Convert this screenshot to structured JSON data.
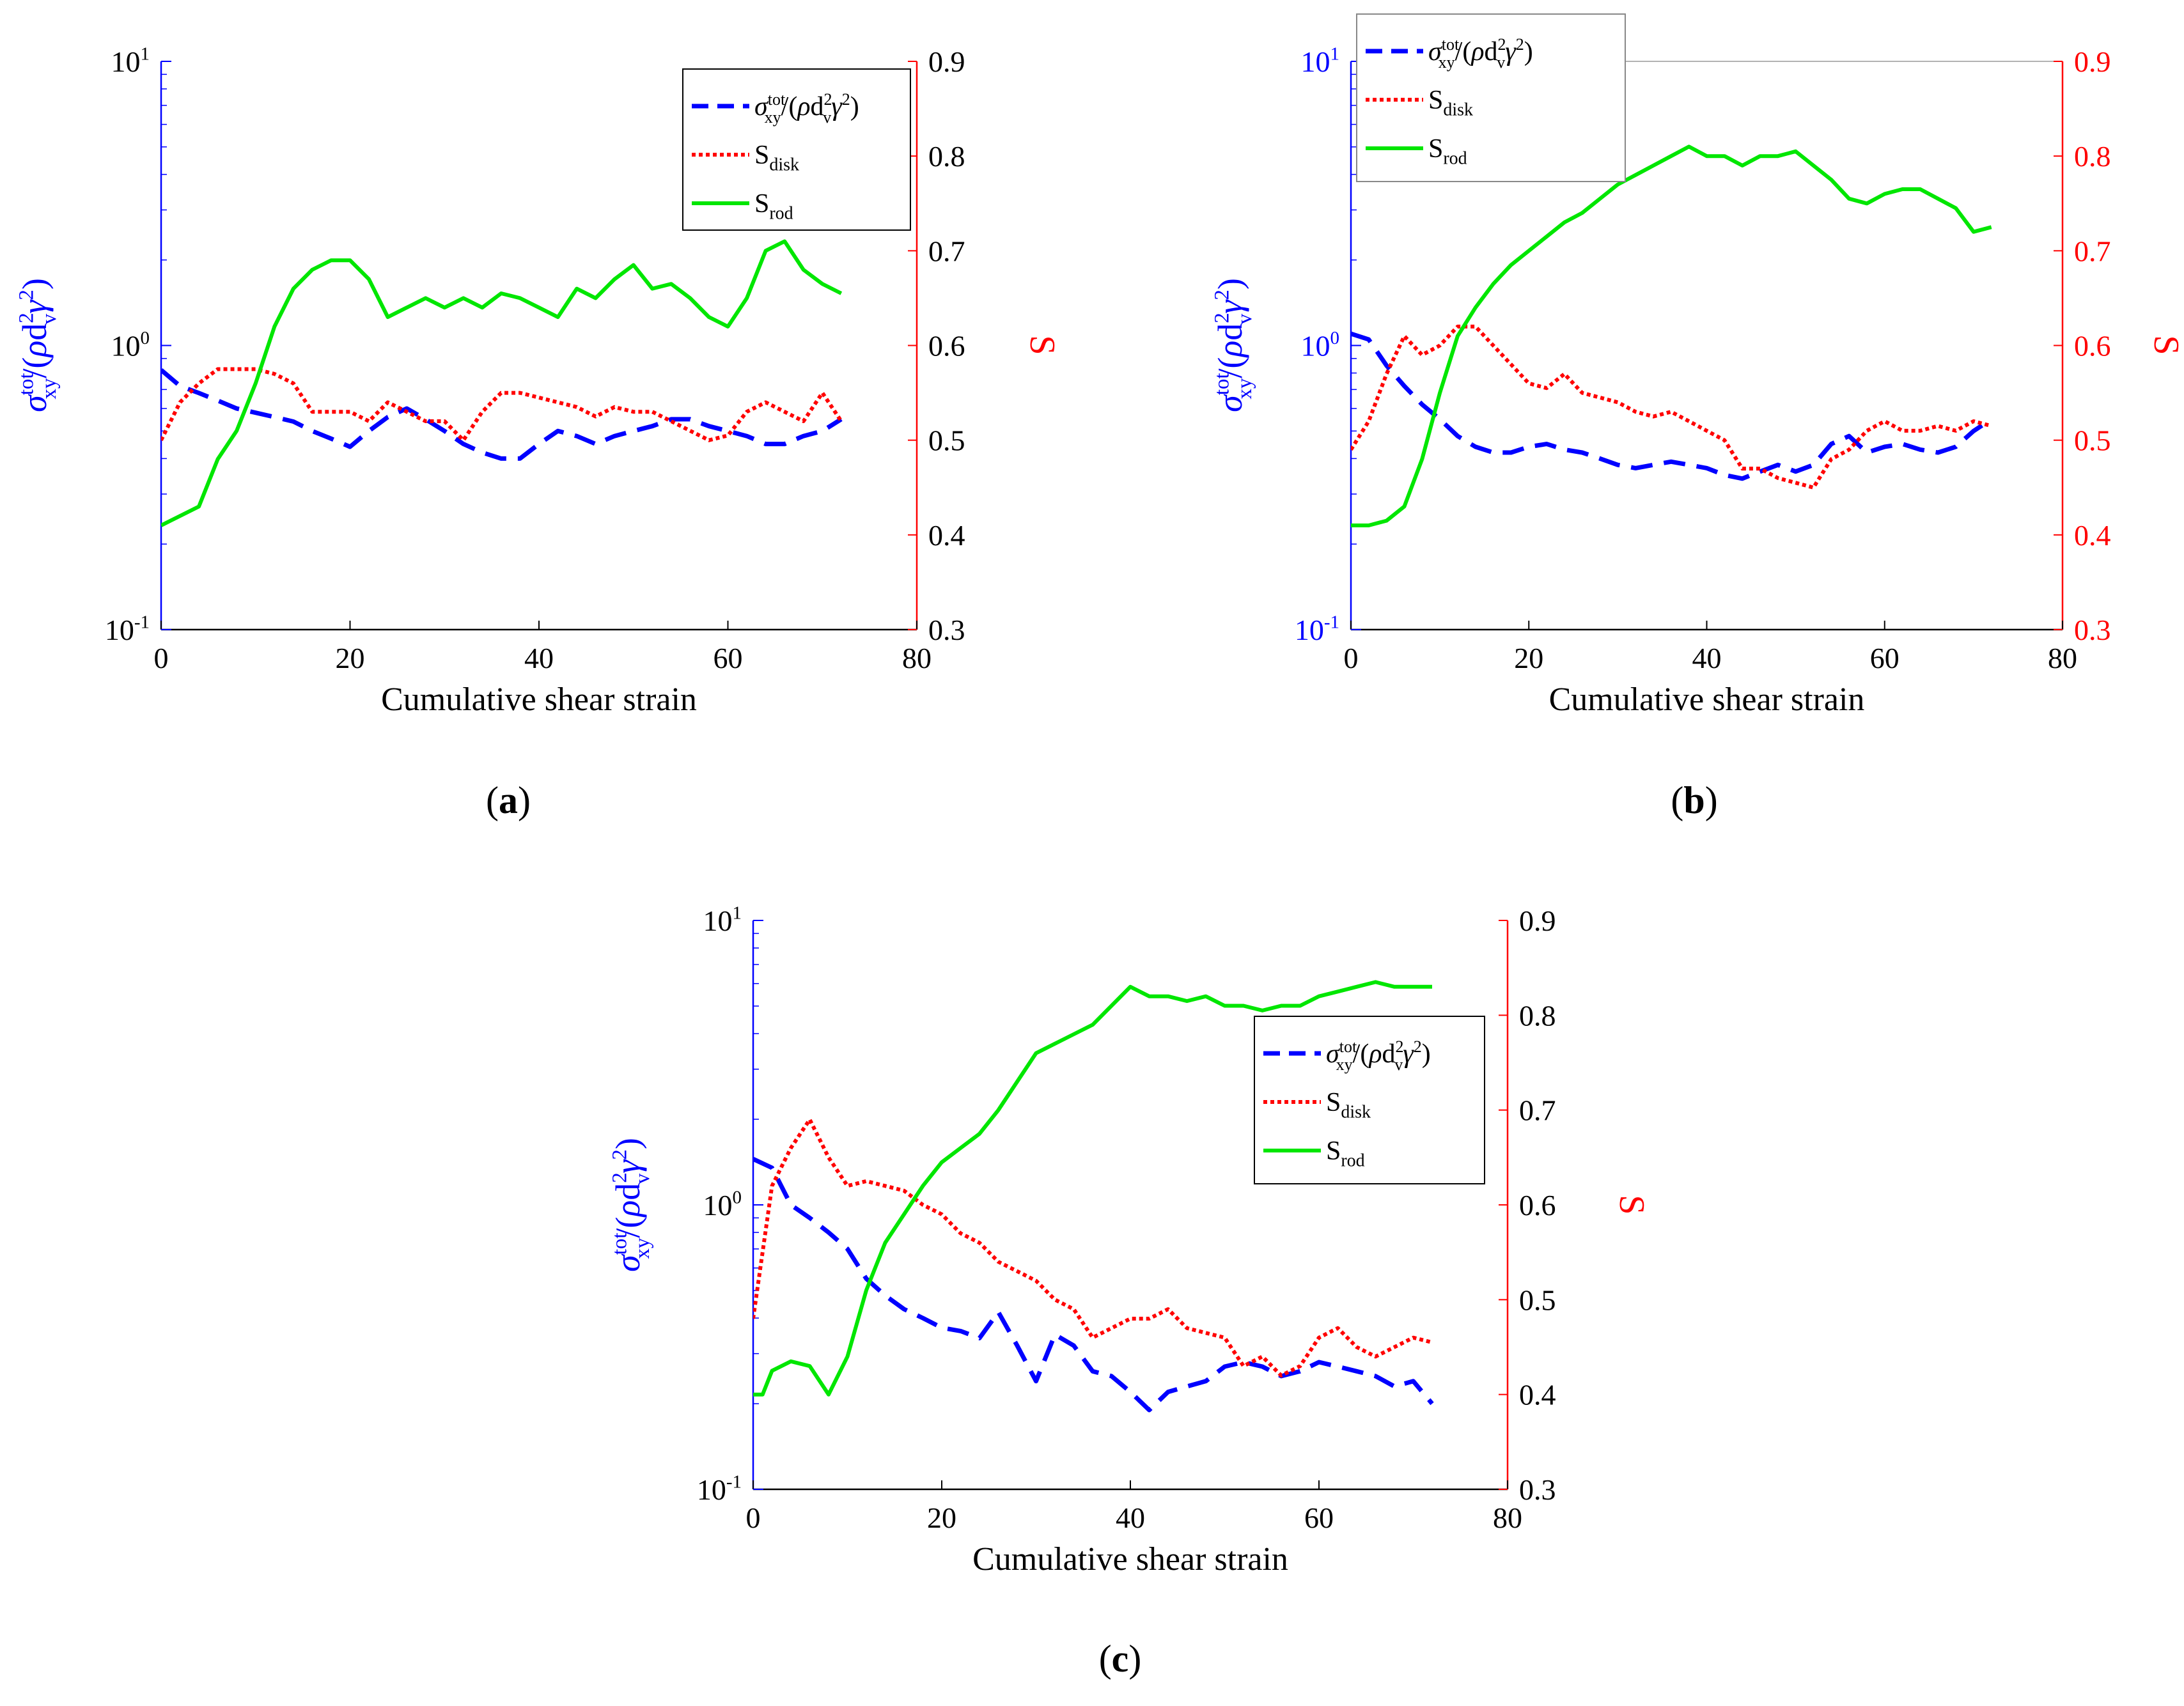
{
  "chart_data": [
    {
      "type": "line",
      "panel_label": "(a)",
      "panel_letter": "a",
      "xlabel": "Cumulative shear strain",
      "xlim": [
        0,
        80
      ],
      "x_ticks": [
        "0",
        "20",
        "40",
        "60",
        "80"
      ],
      "y_left": {
        "label": "σxytot/(ρdv2γ2)",
        "scale": "log",
        "lim": [
          0.1,
          10
        ],
        "ticks": [
          "10-1",
          "100",
          "101"
        ],
        "color": "#0000ff"
      },
      "y_right": {
        "label": "S",
        "lim": [
          0.3,
          0.9
        ],
        "ticks": [
          "0.3",
          "0.4",
          "0.5",
          "0.6",
          "0.7",
          "0.8",
          "0.9"
        ],
        "color": "#ff0000"
      },
      "legend_position": "top-right",
      "series": [
        {
          "name": "σxytot/(ρdv2γ2)",
          "axis": "left",
          "color": "#0000ff",
          "style": "dashed",
          "x": [
            0,
            2,
            4,
            6,
            8,
            10,
            12,
            14,
            16,
            18,
            20,
            22,
            24,
            26,
            28,
            30,
            32,
            34,
            36,
            38,
            40,
            42,
            44,
            46,
            48,
            50,
            52,
            54,
            56,
            58,
            60,
            62,
            64,
            66,
            68,
            70,
            72
          ],
          "values": [
            0.82,
            0.72,
            0.68,
            0.64,
            0.6,
            0.58,
            0.56,
            0.54,
            0.5,
            0.47,
            0.44,
            0.5,
            0.56,
            0.6,
            0.55,
            0.5,
            0.45,
            0.42,
            0.4,
            0.4,
            0.45,
            0.5,
            0.48,
            0.45,
            0.48,
            0.5,
            0.52,
            0.55,
            0.55,
            0.52,
            0.5,
            0.48,
            0.45,
            0.45,
            0.48,
            0.5,
            0.55
          ]
        },
        {
          "name": "Sdisk",
          "axis": "right",
          "color": "#ff0000",
          "style": "dotted",
          "x": [
            0,
            2,
            4,
            6,
            8,
            10,
            12,
            14,
            16,
            18,
            20,
            22,
            24,
            26,
            28,
            30,
            32,
            34,
            36,
            38,
            40,
            42,
            44,
            46,
            48,
            50,
            52,
            54,
            56,
            58,
            60,
            62,
            64,
            66,
            68,
            70,
            72
          ],
          "values": [
            0.5,
            0.54,
            0.56,
            0.575,
            0.575,
            0.575,
            0.57,
            0.56,
            0.53,
            0.53,
            0.53,
            0.52,
            0.54,
            0.53,
            0.52,
            0.52,
            0.5,
            0.53,
            0.55,
            0.55,
            0.545,
            0.54,
            0.535,
            0.525,
            0.535,
            0.53,
            0.53,
            0.52,
            0.51,
            0.5,
            0.505,
            0.53,
            0.54,
            0.53,
            0.52,
            0.55,
            0.52
          ]
        },
        {
          "name": "Srod",
          "axis": "right",
          "color": "#00e600",
          "style": "solid",
          "x": [
            0,
            1,
            2,
            4,
            6,
            8,
            10,
            12,
            14,
            16,
            18,
            20,
            22,
            24,
            26,
            28,
            30,
            32,
            34,
            36,
            38,
            40,
            42,
            44,
            46,
            48,
            50,
            52,
            54,
            56,
            58,
            60,
            62,
            64,
            66,
            68,
            70,
            72
          ],
          "values": [
            0.41,
            0.415,
            0.42,
            0.43,
            0.48,
            0.51,
            0.56,
            0.62,
            0.66,
            0.68,
            0.69,
            0.69,
            0.67,
            0.63,
            0.64,
            0.65,
            0.64,
            0.65,
            0.64,
            0.655,
            0.65,
            0.64,
            0.63,
            0.66,
            0.65,
            0.67,
            0.685,
            0.66,
            0.665,
            0.65,
            0.63,
            0.62,
            0.65,
            0.7,
            0.71,
            0.68,
            0.665,
            0.655
          ]
        }
      ]
    },
    {
      "type": "line",
      "panel_label": "(b)",
      "panel_letter": "b",
      "xlabel": "Cumulative shear strain",
      "xlim": [
        0,
        80
      ],
      "x_ticks": [
        "0",
        "20",
        "40",
        "60",
        "80"
      ],
      "y_left": {
        "label": "σxytot/(ρdv2γ2)",
        "scale": "log",
        "lim": [
          0.1,
          10
        ],
        "ticks": [
          "10-1",
          "100",
          "101"
        ],
        "color": "#0000ff"
      },
      "y_right": {
        "label": "S",
        "lim": [
          0.3,
          0.9
        ],
        "ticks": [
          "0.3",
          "0.4",
          "0.5",
          "0.6",
          "0.7",
          "0.8",
          "0.9"
        ],
        "color": "#ff0000"
      },
      "legend_position": "top-left",
      "series": [
        {
          "name": "σxytot/(ρdv2γ2)",
          "axis": "left",
          "color": "#0000ff",
          "style": "dashed",
          "x": [
            0,
            2,
            4,
            6,
            8,
            10,
            12,
            14,
            16,
            18,
            20,
            22,
            24,
            26,
            28,
            30,
            32,
            34,
            36,
            38,
            40,
            42,
            44,
            46,
            48,
            50,
            52,
            54,
            56,
            58,
            60,
            62,
            64,
            66,
            68,
            70,
            72
          ],
          "values": [
            1.1,
            1.05,
            0.85,
            0.72,
            0.62,
            0.55,
            0.48,
            0.44,
            0.42,
            0.42,
            0.44,
            0.45,
            0.43,
            0.42,
            0.4,
            0.38,
            0.37,
            0.38,
            0.39,
            0.38,
            0.37,
            0.35,
            0.34,
            0.36,
            0.38,
            0.36,
            0.38,
            0.45,
            0.48,
            0.42,
            0.44,
            0.45,
            0.43,
            0.42,
            0.44,
            0.5,
            0.55
          ]
        },
        {
          "name": "Sdisk",
          "axis": "right",
          "color": "#ff0000",
          "style": "dotted",
          "x": [
            0,
            2,
            4,
            6,
            8,
            10,
            12,
            14,
            16,
            18,
            20,
            22,
            24,
            26,
            28,
            30,
            32,
            34,
            36,
            38,
            40,
            42,
            44,
            46,
            48,
            50,
            52,
            54,
            56,
            58,
            60,
            62,
            64,
            66,
            68,
            70,
            72
          ],
          "values": [
            0.49,
            0.52,
            0.57,
            0.61,
            0.59,
            0.6,
            0.62,
            0.62,
            0.6,
            0.58,
            0.56,
            0.555,
            0.57,
            0.55,
            0.545,
            0.54,
            0.53,
            0.525,
            0.53,
            0.52,
            0.51,
            0.5,
            0.47,
            0.47,
            0.46,
            0.455,
            0.45,
            0.48,
            0.49,
            0.51,
            0.52,
            0.51,
            0.51,
            0.515,
            0.51,
            0.52,
            0.515
          ]
        },
        {
          "name": "Srod",
          "axis": "right",
          "color": "#00e600",
          "style": "solid",
          "x": [
            0,
            1,
            2,
            4,
            6,
            8,
            10,
            12,
            14,
            16,
            18,
            20,
            22,
            24,
            26,
            28,
            30,
            32,
            34,
            36,
            38,
            40,
            42,
            44,
            46,
            48,
            50,
            52,
            54,
            56,
            58,
            60,
            62,
            64,
            66,
            68,
            70,
            72
          ],
          "values": [
            0.41,
            0.41,
            0.41,
            0.415,
            0.43,
            0.48,
            0.55,
            0.61,
            0.64,
            0.665,
            0.685,
            0.7,
            0.715,
            0.73,
            0.74,
            0.755,
            0.77,
            0.78,
            0.79,
            0.8,
            0.81,
            0.8,
            0.8,
            0.79,
            0.8,
            0.8,
            0.805,
            0.79,
            0.775,
            0.755,
            0.75,
            0.76,
            0.765,
            0.765,
            0.755,
            0.745,
            0.72,
            0.725
          ]
        }
      ]
    },
    {
      "type": "line",
      "panel_label": "(c)",
      "panel_letter": "c",
      "xlabel": "Cumulative shear strain",
      "xlim": [
        0,
        80
      ],
      "x_ticks": [
        "0",
        "20",
        "40",
        "60",
        "80"
      ],
      "y_left": {
        "label": "σxytot/(ρdv2γ2)",
        "scale": "log",
        "lim": [
          0.1,
          10
        ],
        "ticks": [
          "10-1",
          "100",
          "101"
        ],
        "color": "#0000ff"
      },
      "y_right": {
        "label": "S",
        "lim": [
          0.3,
          0.9
        ],
        "ticks": [
          "0.3",
          "0.4",
          "0.5",
          "0.6",
          "0.7",
          "0.8",
          "0.9"
        ],
        "color": "#ff0000"
      },
      "legend_position": "right",
      "series": [
        {
          "name": "σxytot/(ρdv2γ2)",
          "axis": "left",
          "color": "#0000ff",
          "style": "dashed",
          "x": [
            0,
            2,
            4,
            6,
            8,
            10,
            12,
            14,
            16,
            18,
            20,
            22,
            24,
            26,
            28,
            30,
            32,
            34,
            36,
            38,
            40,
            42,
            44,
            46,
            48,
            50,
            52,
            54,
            56,
            58,
            60,
            62,
            64,
            66,
            68,
            70,
            72
          ],
          "values": [
            1.45,
            1.35,
            1.0,
            0.9,
            0.8,
            0.7,
            0.55,
            0.48,
            0.43,
            0.4,
            0.37,
            0.36,
            0.34,
            0.42,
            0.32,
            0.24,
            0.35,
            0.32,
            0.26,
            0.25,
            0.22,
            0.19,
            0.22,
            0.23,
            0.24,
            0.27,
            0.28,
            0.27,
            0.25,
            0.26,
            0.28,
            0.27,
            0.26,
            0.25,
            0.23,
            0.24,
            0.2
          ]
        },
        {
          "name": "Sdisk",
          "axis": "right",
          "color": "#ff0000",
          "style": "dotted",
          "x": [
            0,
            2,
            4,
            6,
            8,
            10,
            12,
            14,
            16,
            18,
            20,
            22,
            24,
            26,
            28,
            30,
            32,
            34,
            36,
            38,
            40,
            42,
            44,
            46,
            48,
            50,
            52,
            54,
            56,
            58,
            60,
            62,
            64,
            66,
            68,
            70,
            72
          ],
          "values": [
            0.48,
            0.62,
            0.66,
            0.69,
            0.65,
            0.62,
            0.625,
            0.62,
            0.615,
            0.6,
            0.59,
            0.57,
            0.56,
            0.54,
            0.53,
            0.52,
            0.5,
            0.49,
            0.46,
            0.47,
            0.48,
            0.48,
            0.49,
            0.47,
            0.465,
            0.46,
            0.43,
            0.44,
            0.42,
            0.43,
            0.46,
            0.47,
            0.45,
            0.44,
            0.45,
            0.46,
            0.455
          ]
        },
        {
          "name": "Srod",
          "axis": "right",
          "color": "#00e600",
          "style": "solid",
          "x": [
            0,
            1,
            2,
            4,
            6,
            8,
            10,
            12,
            14,
            16,
            18,
            20,
            22,
            24,
            26,
            28,
            30,
            32,
            34,
            36,
            38,
            40,
            42,
            44,
            46,
            48,
            50,
            52,
            54,
            56,
            58,
            60,
            62,
            64,
            66,
            68,
            70,
            72
          ],
          "values": [
            0.4,
            0.4,
            0.425,
            0.435,
            0.43,
            0.4,
            0.44,
            0.51,
            0.56,
            0.59,
            0.62,
            0.645,
            0.66,
            0.675,
            0.7,
            0.73,
            0.76,
            0.77,
            0.78,
            0.79,
            0.81,
            0.83,
            0.82,
            0.82,
            0.815,
            0.82,
            0.81,
            0.81,
            0.805,
            0.81,
            0.81,
            0.82,
            0.825,
            0.83,
            0.835,
            0.83,
            0.83,
            0.83
          ]
        }
      ]
    }
  ]
}
